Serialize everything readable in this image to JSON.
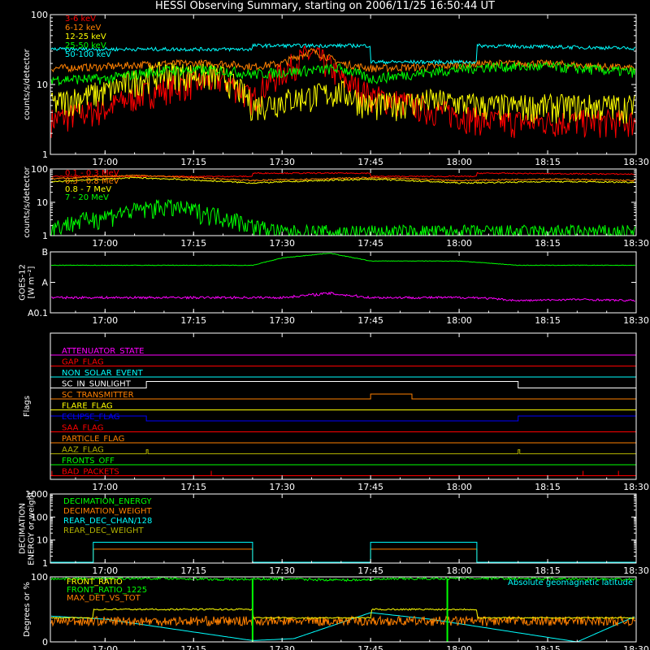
{
  "title": "HESSI Observing Summary, starting on 2006/11/25 16:50:44 UT",
  "time_axis": {
    "ticks": [
      "17:00",
      "17:15",
      "17:30",
      "17:45",
      "18:00",
      "18:15",
      "18:30"
    ],
    "start_hours": 16.8456,
    "end_hours": 18.5
  },
  "colors": {
    "red": "#ff0000",
    "orange": "#ff8000",
    "yellow": "#ffff00",
    "green": "#00ff00",
    "cyan": "#00ffff",
    "magenta": "#ff00ff",
    "blue": "#0000ff",
    "olive": "#b0b000",
    "white": "#ffffff"
  },
  "chart_data": [
    {
      "type": "line",
      "ylabel": "counts/s/detector",
      "ylog": true,
      "ylim": [
        1,
        100
      ],
      "y_ticks": [
        "1",
        "10",
        "100"
      ],
      "series": [
        {
          "name": "3-6 keV",
          "color": "red",
          "x": [
            "16:50",
            "17:00",
            "17:10",
            "17:20",
            "17:25",
            "17:30",
            "17:35",
            "17:40",
            "17:45",
            "17:55",
            "18:05",
            "18:15",
            "18:30"
          ],
          "values": [
            3,
            4.5,
            9,
            12,
            6,
            15,
            28,
            12,
            7,
            4.5,
            3,
            3,
            3
          ]
        },
        {
          "name": "6-12 keV",
          "color": "orange",
          "x": [
            "16:50",
            "17:00",
            "17:10",
            "17:20",
            "17:25",
            "17:30",
            "17:35",
            "17:40",
            "17:45",
            "17:55",
            "18:05",
            "18:15",
            "18:30"
          ],
          "values": [
            17,
            18,
            20,
            20,
            18,
            20,
            30,
            20,
            17,
            18,
            20,
            20,
            17
          ]
        },
        {
          "name": "12-25 keV",
          "color": "yellow",
          "x": [
            "16:50",
            "17:00",
            "17:10",
            "17:20",
            "17:25",
            "17:30",
            "17:40",
            "17:45",
            "17:55",
            "18:05",
            "18:15",
            "18:30"
          ],
          "values": [
            5,
            8,
            15,
            13,
            5,
            6,
            8,
            5,
            6,
            5,
            5,
            5
          ]
        },
        {
          "name": "25-50 keV",
          "color": "green",
          "x": [
            "16:50",
            "17:00",
            "17:10",
            "17:20",
            "17:25",
            "17:30",
            "17:40",
            "17:45",
            "17:55",
            "18:05",
            "18:15",
            "18:30"
          ],
          "values": [
            12,
            12,
            16,
            16,
            14,
            15,
            17,
            12,
            15,
            18,
            18,
            15
          ]
        },
        {
          "name": "50-100 keV",
          "color": "cyan",
          "x": [
            "16:50",
            "17:25",
            "17:25",
            "17:45",
            "17:45",
            "18:03",
            "18:03",
            "18:30"
          ],
          "values": [
            32,
            32,
            36,
            36,
            21,
            21,
            36,
            33
          ]
        }
      ]
    },
    {
      "type": "line",
      "ylabel": "counts/s/detector",
      "ylog": true,
      "ylim": [
        1,
        100
      ],
      "y_ticks": [
        "1",
        "10",
        "100"
      ],
      "series": [
        {
          "name": "0.1 - 0.3 MeV",
          "color": "red",
          "x": [
            "16:50",
            "17:25",
            "17:25",
            "17:45",
            "17:45",
            "18:03",
            "18:03",
            "18:30"
          ],
          "values": [
            60,
            60,
            75,
            75,
            60,
            60,
            75,
            70
          ]
        },
        {
          "name": "0.3 - 0.8 MeV",
          "color": "orange",
          "x": [
            "16:50",
            "17:05",
            "17:25",
            "17:45",
            "18:00",
            "18:15",
            "18:30"
          ],
          "values": [
            50,
            65,
            45,
            55,
            45,
            50,
            45
          ]
        },
        {
          "name": "0.8 - 7 MeV",
          "color": "yellow",
          "x": [
            "16:50",
            "17:05",
            "17:25",
            "17:45",
            "18:00",
            "18:15",
            "18:30"
          ],
          "values": [
            40,
            55,
            38,
            50,
            38,
            42,
            40
          ]
        },
        {
          "name": "7 - 20 MeV",
          "color": "green",
          "x": [
            "16:50",
            "17:00",
            "17:10",
            "17:20",
            "17:25",
            "17:30",
            "18:30"
          ],
          "values": [
            1.5,
            4,
            8,
            4,
            2,
            1.3,
            1.3
          ]
        }
      ]
    },
    {
      "type": "line",
      "ylabel": "GOES-12 [W m⁻²]",
      "y_ticks": [
        "A0.1",
        "A",
        "B"
      ],
      "series": [
        {
          "name": "GOES long",
          "color": "green",
          "x": [
            "16:50",
            "17:25",
            "17:30",
            "17:38",
            "17:45",
            "18:00",
            "18:10",
            "18:20",
            "18:30"
          ],
          "values": [
            0.78,
            0.78,
            0.9,
            0.98,
            0.85,
            0.85,
            0.78,
            0.78,
            0.78
          ]
        },
        {
          "name": "GOES short",
          "color": "magenta",
          "x": [
            "16:50",
            "17:30",
            "17:38",
            "17:45",
            "18:03",
            "18:10",
            "18:20",
            "18:30"
          ],
          "values": [
            0.25,
            0.25,
            0.32,
            0.25,
            0.25,
            0.2,
            0.22,
            0.2
          ]
        }
      ]
    },
    {
      "type": "line",
      "ylabel": "Flags",
      "flags": [
        {
          "name": "ATTENUATOR_STATE",
          "color": "magenta"
        },
        {
          "name": "GAP_FLAG",
          "color": "red"
        },
        {
          "name": "NON_SOLAR_EVENT",
          "color": "cyan"
        },
        {
          "name": "SC_IN_SUNLIGHT",
          "color": "white"
        },
        {
          "name": "SC_TRANSMITTER",
          "color": "orange"
        },
        {
          "name": "FLARE_FLAG",
          "color": "yellow"
        },
        {
          "name": "ECLIPSE_FLAG",
          "color": "blue"
        },
        {
          "name": "SAA_FLAG",
          "color": "red"
        },
        {
          "name": "PARTICLE_FLAG",
          "color": "orange"
        },
        {
          "name": "AAZ_FLAG",
          "color": "olive"
        },
        {
          "name": "FRONTS_OFF",
          "color": "green"
        },
        {
          "name": "BAD_PACKETS",
          "color": "red"
        }
      ]
    },
    {
      "type": "line",
      "ylabel": "DECIMATION ENERGY or weight",
      "ylog": true,
      "ylim": [
        1,
        1000
      ],
      "y_ticks": [
        "1",
        "10",
        "100",
        "1000"
      ],
      "series": [
        {
          "name": "DECIMATION_ENERGY",
          "color": "green"
        },
        {
          "name": "DECIMATION_WEIGHT",
          "color": "orange",
          "x": [
            "16:50",
            "16:58",
            "16:58",
            "17:25",
            "17:25",
            "17:45",
            "17:45",
            "18:03",
            "18:03",
            "18:30"
          ],
          "values": [
            1,
            1,
            4,
            4,
            1,
            1,
            4,
            4,
            1,
            1
          ]
        },
        {
          "name": "REAR_DEC_CHAN/128",
          "color": "cyan",
          "x": [
            "16:50",
            "16:58",
            "16:58",
            "17:25",
            "17:25",
            "17:45",
            "17:45",
            "18:03",
            "18:03",
            "18:30"
          ],
          "values": [
            1,
            1,
            8,
            8,
            1,
            1,
            8,
            8,
            1,
            1
          ]
        },
        {
          "name": "REAR_DEC_WEIGHT",
          "color": "olive"
        }
      ]
    },
    {
      "type": "line",
      "ylabel": "Degrees or %",
      "ylim": [
        0,
        100
      ],
      "y_ticks": [
        "0",
        "100"
      ],
      "annotation": "Absolute geomagnetic latitude",
      "series": [
        {
          "name": "FRONT_RATIO",
          "color": "yellow",
          "x": [
            "16:50",
            "16:58",
            "16:58",
            "17:25",
            "17:25",
            "17:45",
            "17:45",
            "18:03",
            "18:03",
            "18:30"
          ],
          "values": [
            37,
            37,
            50,
            50,
            37,
            37,
            50,
            50,
            37,
            37
          ]
        },
        {
          "name": "FRONT_RATIO_1225",
          "color": "green",
          "x": [
            "16:50",
            "17:10",
            "17:20",
            "17:30",
            "17:40",
            "17:50",
            "18:05",
            "18:15",
            "18:30"
          ],
          "values": [
            97,
            98,
            96,
            97,
            95,
            97,
            98,
            97,
            96
          ]
        },
        {
          "name": "MAX_DET_VS_TOT",
          "color": "orange",
          "x": [
            "16:50",
            "18:30"
          ],
          "values": [
            32,
            32
          ]
        },
        {
          "name": "Absolute geomagnetic latitude",
          "color": "cyan",
          "x": [
            "16:50",
            "17:00",
            "17:25",
            "17:32",
            "17:45",
            "17:55",
            "18:20",
            "18:30"
          ],
          "values": [
            40,
            35,
            2,
            5,
            45,
            35,
            0,
            40
          ]
        }
      ]
    }
  ]
}
